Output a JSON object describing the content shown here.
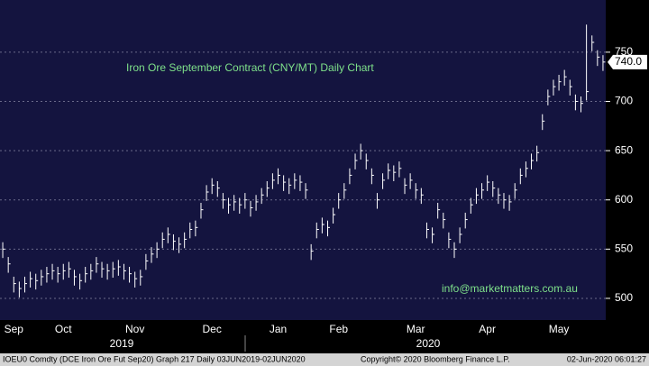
{
  "chart_data": {
    "type": "ohlc",
    "title": "Iron Ore September Contract (CNY/MT) Daily Chart",
    "annotation": "info@marketmatters.com.au",
    "footer_left": "IOEU0 Comdty (DCE Iron Ore Fut  Sep20) Graph 217  Daily 03JUN2019-02JUN2020",
    "footer_mid": "Copyright© 2020 Bloomberg Finance L.P.",
    "footer_right": "02-Jun-2020 06:01:27",
    "years": [
      "2019",
      "2020"
    ],
    "color": "#ffffff",
    "xlim": [
      -0.5,
      109.5
    ],
    "xticks": [
      {
        "value": 2,
        "label": "Sep"
      },
      {
        "value": 11,
        "label": "Oct"
      },
      {
        "value": 24,
        "label": "Nov"
      },
      {
        "value": 38,
        "label": "Dec"
      },
      {
        "value": 50,
        "label": "Jan"
      },
      {
        "value": 61,
        "label": "Feb"
      },
      {
        "value": 75,
        "label": "Mar"
      },
      {
        "value": 88,
        "label": "Apr"
      },
      {
        "value": 101,
        "label": "May"
      }
    ],
    "ylim": [
      478,
      803
    ],
    "yticks": [
      500,
      550,
      600,
      650,
      700,
      750
    ],
    "grid": true,
    "high": [
      557,
      542,
      522,
      517,
      522,
      527,
      525,
      529,
      532,
      535,
      532,
      535,
      537,
      529,
      525,
      532,
      535,
      542,
      537,
      535,
      537,
      539,
      535,
      532,
      527,
      529,
      545,
      552,
      557,
      567,
      572,
      565,
      562,
      567,
      577,
      579,
      597,
      615,
      622,
      619,
      607,
      602,
      605,
      602,
      607,
      599,
      605,
      612,
      619,
      627,
      632,
      625,
      622,
      627,
      625,
      617,
      555,
      577,
      582,
      579,
      592,
      607,
      617,
      632,
      647,
      657,
      647,
      632,
      607,
      627,
      637,
      635,
      639,
      622,
      627,
      617,
      612,
      577,
      572,
      597,
      587,
      567,
      557,
      572,
      587,
      602,
      612,
      617,
      625,
      619,
      612,
      607,
      605,
      617,
      632,
      639,
      647,
      655,
      687,
      712,
      722,
      727,
      732,
      722,
      707,
      705,
      778,
      767,
      752,
      747
    ],
    "low": [
      541,
      526,
      506,
      501,
      506,
      511,
      509,
      513,
      516,
      519,
      516,
      519,
      521,
      513,
      509,
      516,
      519,
      526,
      521,
      519,
      521,
      523,
      519,
      516,
      511,
      513,
      529,
      536,
      541,
      551,
      556,
      549,
      546,
      551,
      561,
      563,
      581,
      599,
      606,
      603,
      591,
      586,
      589,
      586,
      591,
      583,
      589,
      596,
      603,
      611,
      616,
      609,
      606,
      611,
      609,
      601,
      539,
      561,
      566,
      563,
      576,
      591,
      601,
      616,
      631,
      641,
      631,
      616,
      591,
      611,
      621,
      619,
      623,
      606,
      611,
      601,
      596,
      561,
      556,
      581,
      571,
      551,
      541,
      556,
      571,
      586,
      596,
      601,
      609,
      603,
      596,
      591,
      589,
      601,
      616,
      623,
      631,
      639,
      671,
      696,
      706,
      711,
      716,
      706,
      691,
      689,
      701,
      751,
      736,
      731
    ],
    "close": [
      550,
      535,
      515,
      510,
      515,
      520,
      518,
      522,
      525,
      528,
      525,
      528,
      530,
      522,
      518,
      525,
      528,
      535,
      530,
      528,
      530,
      532,
      528,
      525,
      520,
      522,
      538,
      545,
      550,
      560,
      565,
      558,
      555,
      560,
      570,
      572,
      590,
      608,
      615,
      612,
      600,
      595,
      598,
      595,
      600,
      592,
      598,
      605,
      612,
      620,
      625,
      618,
      615,
      620,
      618,
      610,
      548,
      570,
      575,
      572,
      585,
      600,
      610,
      625,
      640,
      650,
      640,
      625,
      600,
      620,
      630,
      628,
      632,
      615,
      620,
      610,
      605,
      570,
      565,
      590,
      580,
      560,
      550,
      565,
      580,
      595,
      605,
      610,
      618,
      612,
      605,
      600,
      598,
      610,
      625,
      632,
      640,
      648,
      680,
      705,
      715,
      720,
      725,
      715,
      700,
      698,
      710,
      760,
      745,
      740
    ],
    "value_labels": [
      null,
      null,
      null,
      null,
      null,
      null,
      null,
      null,
      null,
      null,
      null,
      null,
      null,
      null,
      null,
      null,
      null,
      null,
      null,
      null,
      null,
      null,
      null,
      null,
      null,
      null,
      null,
      null,
      null,
      null,
      null,
      null,
      null,
      null,
      null,
      null,
      null,
      null,
      null,
      null,
      null,
      null,
      null,
      null,
      null,
      null,
      null,
      null,
      null,
      null,
      null,
      null,
      null,
      null,
      null,
      null,
      null,
      null,
      null,
      null,
      null,
      null,
      null,
      null,
      null,
      null,
      null,
      null,
      null,
      null,
      null,
      null,
      null,
      null,
      null,
      null,
      null,
      null,
      null,
      null,
      null,
      null,
      null,
      null,
      null,
      null,
      null,
      null,
      null,
      null,
      null,
      null,
      null,
      null,
      null,
      null,
      null,
      null,
      null,
      null,
      null,
      null,
      null,
      null,
      null,
      null,
      null,
      null,
      null,
      "740.0"
    ]
  }
}
